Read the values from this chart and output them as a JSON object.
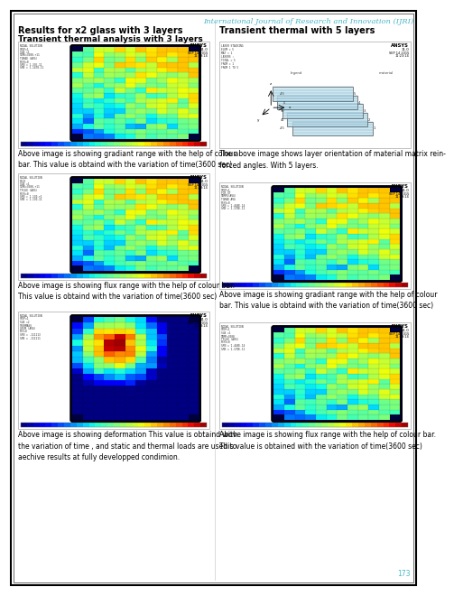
{
  "page_bg": "#ffffff",
  "border_color": "#000000",
  "header_text": "International Journal of Research and Innovation (IJRI)",
  "header_color": "#4ab8c8",
  "header_fontsize": 6.0,
  "page_number": "173",
  "left_section_title": "Results for x2 glass with 3 layers",
  "right_section_title": "Transient thermal with 5 layers",
  "left_sub_title": "Transient thermal analysis with 3 layers",
  "left_caption1": "Above image is showing gradiant range with the help of colour\nbar. This value is obtaind with the variation of time(3600 sec)",
  "left_caption2": "Above image is showing flux range with the help of colour bar.\nThis value is obtaind with the variation of time(3600 sec)",
  "left_caption3": "Above image is showing deformation This value is obtaind with\nthe variation of time , and static and thermal loads are used to\naechive results at fully developped condimion.",
  "right_caption1": "The above image shows layer orientation of material matrix rein-\nforced angles. With 5 layers.",
  "right_caption2": "Above image is showing gradiant range with the help of colour\nbar. This value is obtaind with the variation of time(3600 sec)",
  "right_caption3": "Above image is showing flux range with the help of colour bar.\nThis value is obtained with the variation of time(3600 sec)",
  "text_color": "#000000",
  "title_fontsize": 7.0,
  "caption_fontsize": 5.5,
  "sub_title_fontsize": 6.5,
  "left_labels_thermal": [
    "NODAL SOLUTION",
    "STEP=1",
    "SUB =1",
    "TIME=3600-+11",
    "TGRAD (AVG)",
    "RSYS=0",
    "SMN = 1.37E-11",
    "SMX = 1.1478-11"
  ],
  "left_labels_flux": [
    "NODAL SOLUTION",
    "FLUX",
    "SUB =1",
    "TIME=3600-+11",
    "TFLUX (AVG)",
    "RSYS=0",
    "SMN = 1.130-+1",
    "SMX = 1.130-11"
  ],
  "left_labels_deform": [
    "NODAL SOLUTION",
    "STEP=1",
    "SUB =2",
    "THERMASS",
    "USUM (AVG)",
    "RSY=0",
    "SMN = .111113",
    "SMX = .111111"
  ],
  "right_labels_thermal5": [
    "NODAL SOLUTION",
    "STEP=1",
    "FOR UT",
    "TEMPE(AVG)",
    "TGRAD AVG",
    "RSYS=0",
    "SMN = 1.448E-14",
    "SMX = 1.170E-11"
  ],
  "right_labels_flux5": [
    "NODAL SOLUTION",
    "STEP=1",
    "SUB =1",
    "TEMP=3600",
    "TFLUX (AVG)",
    "RSYS=0",
    "SMN = 1.448E-14",
    "SMX = 1.170E-11"
  ]
}
